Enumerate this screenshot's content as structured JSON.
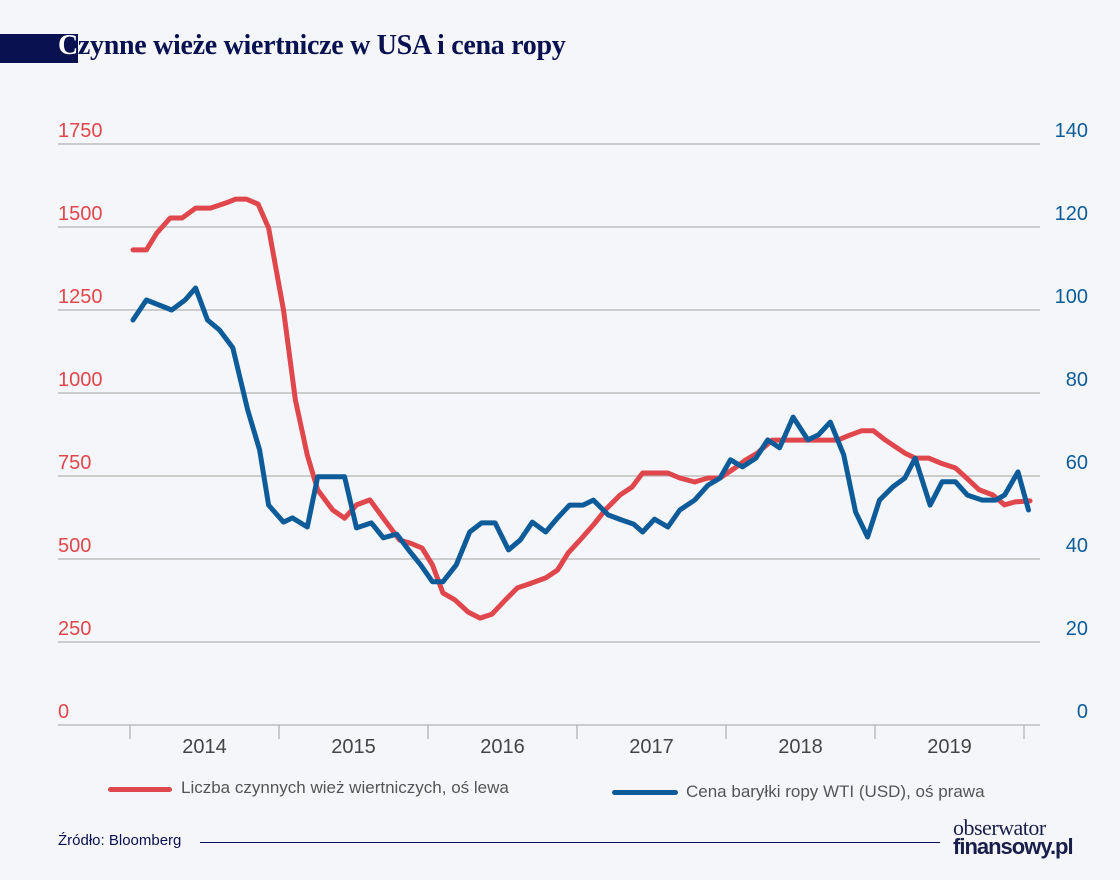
{
  "title": {
    "first_letter": "C",
    "rest": "zynne wieże wiertnicze w USA i cena ropy"
  },
  "legend": [
    {
      "label": "Liczba czynnych wież wiertniczych, oś lewa",
      "color": "#e0474c"
    },
    {
      "label": "Cena baryłki ropy WTI (USD), oś prawa",
      "color": "#0d5c99"
    }
  ],
  "footer": {
    "source": "Źródło: Bloomberg",
    "logo_line1": "obserwator",
    "logo_line2": "finansowy.pl"
  },
  "chart_data": {
    "type": "line",
    "title": "Czynne wieże wiertnicze w USA i cena ropy",
    "x_ticks": [
      "2014",
      "2015",
      "2016",
      "2017",
      "2018",
      "2019"
    ],
    "xlim": [
      2014,
      2020
    ],
    "y_left": {
      "ticks": [
        0,
        250,
        500,
        750,
        1000,
        1250,
        1500,
        1750
      ],
      "ylim": [
        0,
        1750
      ],
      "color": "#e0474c"
    },
    "y_right": {
      "ticks": [
        0,
        20,
        40,
        60,
        80,
        100,
        120,
        140
      ],
      "ylim": [
        0,
        140
      ],
      "color": "#0d5c99"
    },
    "grid": true,
    "legend_position": "bottom",
    "series": [
      {
        "name": "Liczba czynnych wież wiertniczych, oś lewa",
        "axis": "left",
        "color": "#e0474c",
        "x": [
          2014.02,
          2014.11,
          2014.18,
          2014.27,
          2014.35,
          2014.44,
          2014.54,
          2014.66,
          2014.71,
          2014.78,
          2014.86,
          2014.93,
          2015.03,
          2015.11,
          2015.19,
          2015.26,
          2015.36,
          2015.44,
          2015.52,
          2015.61,
          2015.71,
          2015.81,
          2015.88,
          2015.96,
          2016.03,
          2016.1,
          2016.18,
          2016.27,
          2016.35,
          2016.43,
          2016.52,
          2016.6,
          2016.68,
          2016.79,
          2016.87,
          2016.94,
          2017.02,
          2017.12,
          2017.19,
          2017.29,
          2017.37,
          2017.44,
          2017.52,
          2017.61,
          2017.69,
          2017.79,
          2017.88,
          2017.96,
          2018.06,
          2018.13,
          2018.21,
          2018.31,
          2018.4,
          2018.5,
          2018.58,
          2018.67,
          2018.75,
          2018.83,
          2018.91,
          2018.99,
          2019.07,
          2019.14,
          2019.2,
          2019.27,
          2019.36,
          2019.44,
          2019.54,
          2019.6,
          2019.7,
          2019.79,
          2019.87,
          2019.94,
          2020.04
        ],
        "values": [
          1431,
          1431,
          1482,
          1527,
          1527,
          1557,
          1557,
          1575,
          1584,
          1584,
          1569,
          1497,
          1250,
          979,
          813,
          708,
          648,
          623,
          663,
          678,
          617,
          557,
          548,
          533,
          482,
          398,
          377,
          340,
          322,
          334,
          377,
          413,
          425,
          443,
          467,
          518,
          557,
          608,
          648,
          693,
          717,
          759,
          759,
          759,
          744,
          732,
          744,
          744,
          774,
          798,
          819,
          858,
          858,
          858,
          858,
          858,
          858,
          873,
          886,
          886,
          858,
          837,
          819,
          804,
          804,
          789,
          774,
          750,
          708,
          693,
          663,
          672,
          675
        ]
      },
      {
        "name": "Cena baryłki ropy WTI (USD), oś prawa",
        "axis": "right",
        "color": "#0d5c99",
        "x": [
          2014.02,
          2014.11,
          2014.28,
          2014.37,
          2014.44,
          2014.52,
          2014.6,
          2014.69,
          2014.79,
          2014.87,
          2014.93,
          2015.03,
          2015.09,
          2015.19,
          2015.26,
          2015.44,
          2015.52,
          2015.62,
          2015.7,
          2015.79,
          2015.87,
          2015.95,
          2016.03,
          2016.1,
          2016.19,
          2016.28,
          2016.36,
          2016.45,
          2016.54,
          2016.62,
          2016.7,
          2016.79,
          2016.87,
          2016.95,
          2017.04,
          2017.11,
          2017.21,
          2017.3,
          2017.38,
          2017.44,
          2017.52,
          2017.61,
          2017.69,
          2017.79,
          2017.88,
          2017.96,
          2018.03,
          2018.11,
          2018.2,
          2018.28,
          2018.36,
          2018.45,
          2018.55,
          2018.62,
          2018.7,
          2018.79,
          2018.87,
          2018.95,
          2019.03,
          2019.12,
          2019.2,
          2019.27,
          2019.37,
          2019.45,
          2019.54,
          2019.62,
          2019.72,
          2019.81,
          2019.87,
          2019.96,
          2020.03
        ],
        "values": [
          97.6,
          102.4,
          100.0,
          102.4,
          105.3,
          97.6,
          95.2,
          90.9,
          75.9,
          66.3,
          53.0,
          48.9,
          49.9,
          47.7,
          59.8,
          59.8,
          47.5,
          48.7,
          45.1,
          46.0,
          42.2,
          38.6,
          34.5,
          34.5,
          38.6,
          46.5,
          48.7,
          48.7,
          42.2,
          44.6,
          48.9,
          46.5,
          49.9,
          53.0,
          53.0,
          54.2,
          50.6,
          49.4,
          48.4,
          46.5,
          49.6,
          47.7,
          51.8,
          54.2,
          57.8,
          59.5,
          63.9,
          62.2,
          64.3,
          68.7,
          66.8,
          74.2,
          68.7,
          69.9,
          73.0,
          65.1,
          51.3,
          45.3,
          54.2,
          57.4,
          59.5,
          64.3,
          53.0,
          58.6,
          58.6,
          55.4,
          54.2,
          54.2,
          55.4,
          61.0,
          51.8
        ]
      }
    ]
  }
}
